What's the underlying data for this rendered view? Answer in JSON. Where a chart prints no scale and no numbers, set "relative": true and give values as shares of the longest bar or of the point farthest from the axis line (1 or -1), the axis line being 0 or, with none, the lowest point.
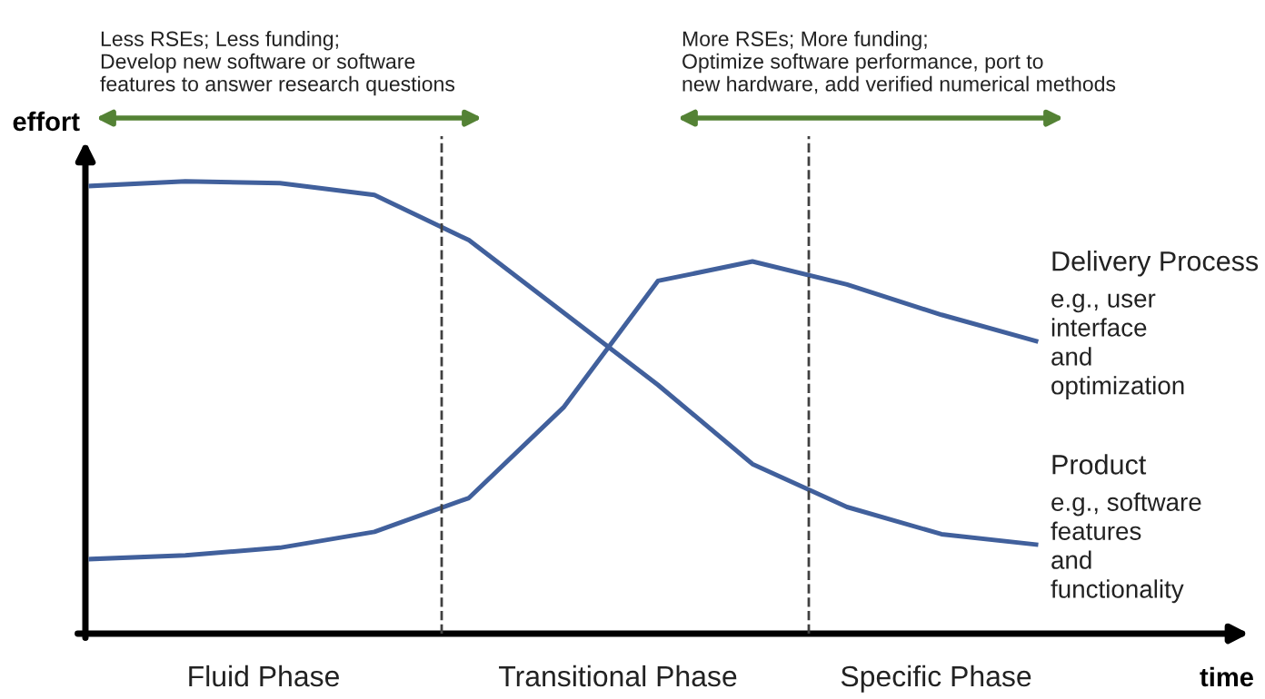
{
  "chart_data": {
    "type": "line",
    "relative": true,
    "xlabel": "time",
    "ylabel": "effort",
    "categories": [
      null,
      null,
      null,
      null,
      null,
      null,
      null,
      null,
      null,
      null,
      null
    ],
    "series": [
      {
        "name": "Product",
        "color": "#41609c",
        "values": [
          0.99,
          1.0,
          0.996,
          0.97,
          0.87,
          0.71,
          0.55,
          0.375,
          0.28,
          0.22,
          0.197
        ]
      },
      {
        "name": "Delivery Process",
        "color": "#41609c",
        "values": [
          0.165,
          0.173,
          0.19,
          0.225,
          0.3,
          0.5,
          0.78,
          0.823,
          0.772,
          0.705,
          0.647
        ]
      }
    ],
    "annotations": [
      "e.g., software\nfeatures\nand\nfunctionality",
      "e.g., user\ninterface\nand\noptimization",
      "Fluid Phase",
      "Transitional Phase",
      "Specific Phase",
      "Less RSEs; Less funding;\nDevelop new software or software\nfeatures to answer research questions",
      "More RSEs; More funding;\nOptimize software performance, port to\nnew hardware, add verified numerical methods"
    ],
    "legend": false,
    "marker": "none",
    "line_style": "solid"
  }
}
